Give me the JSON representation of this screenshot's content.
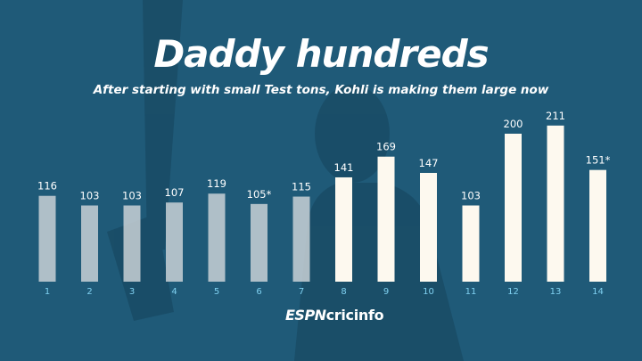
{
  "header": {
    "title": "Daddy hundreds",
    "subtitle": "After starting with small Test tons, Kohli is making them large now"
  },
  "branding": {
    "logo_espn": "ESPN",
    "logo_cricinfo": "cricinfo"
  },
  "colors": {
    "background": "#1f5a78",
    "bar_early": "#c9d1d6",
    "bar_recent": "#fdf9ef",
    "tick_label": "#7fd0f0",
    "value_label": "#ffffff"
  },
  "chart_data": {
    "type": "bar",
    "title": "Daddy hundreds",
    "subtitle": "After starting with small Test tons, Kohli is making them large now",
    "xlabel": "",
    "ylabel": "",
    "categories": [
      "1",
      "2",
      "3",
      "4",
      "5",
      "6",
      "7",
      "8",
      "9",
      "10",
      "11",
      "12",
      "13",
      "14"
    ],
    "values": [
      116,
      103,
      103,
      107,
      119,
      105,
      115,
      141,
      169,
      147,
      103,
      200,
      211,
      151
    ],
    "value_labels": [
      "116",
      "103",
      "103",
      "107",
      "119",
      "105*",
      "115",
      "141",
      "169",
      "147",
      "103",
      "200",
      "211",
      "151*"
    ],
    "highlight_from_index": 7,
    "grid": false,
    "legend": "none"
  }
}
